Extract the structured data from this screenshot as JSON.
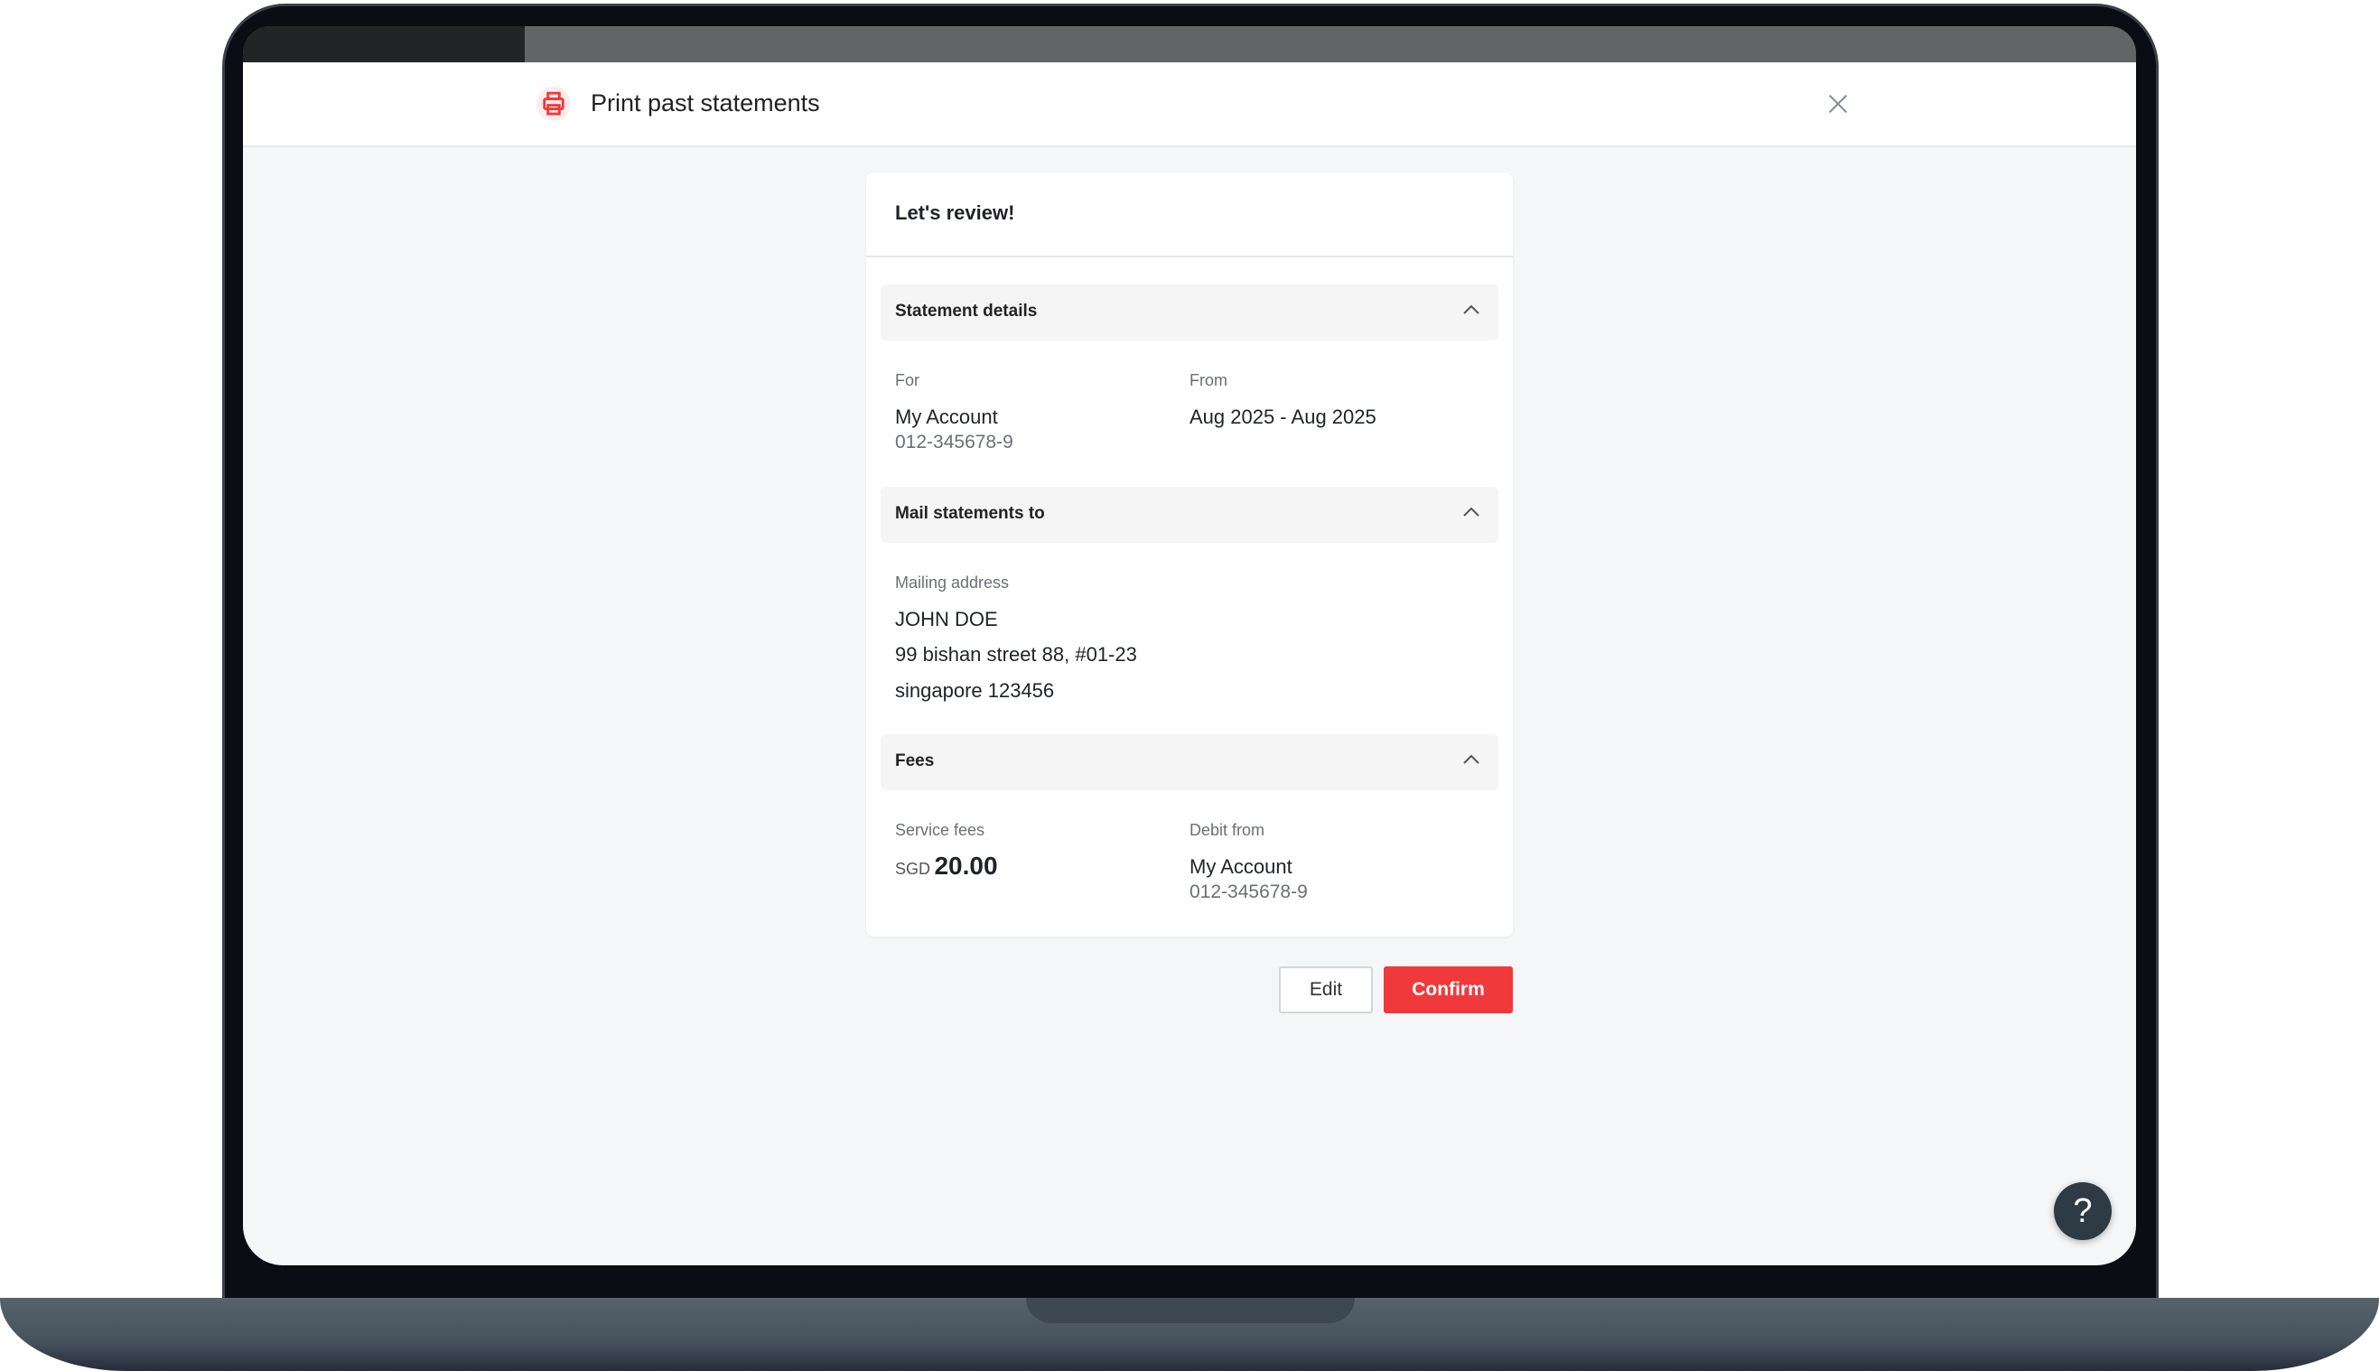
{
  "modal": {
    "title": "Print past statements",
    "icon": "printer-icon",
    "accent_color": "#f0393a"
  },
  "card": {
    "title": "Let's review!",
    "statement_details": {
      "header": "Statement details",
      "for_label": "For",
      "for_account": "My Account",
      "for_number": "012-345678-9",
      "from_label": "From",
      "from_value": "Aug 2025 - Aug 2025"
    },
    "mail": {
      "header": "Mail statements to",
      "label": "Mailing address",
      "name": "JOHN DOE",
      "line1": "99 bishan street 88, #01-23",
      "line2": "singapore 123456"
    },
    "fees": {
      "header": "Fees",
      "service_label": "Service fees",
      "currency": "SGD",
      "amount": "20.00",
      "debit_label": "Debit from",
      "debit_account": "My Account",
      "debit_number": "012-345678-9"
    }
  },
  "actions": {
    "edit": "Edit",
    "confirm": "Confirm"
  },
  "help": "?"
}
